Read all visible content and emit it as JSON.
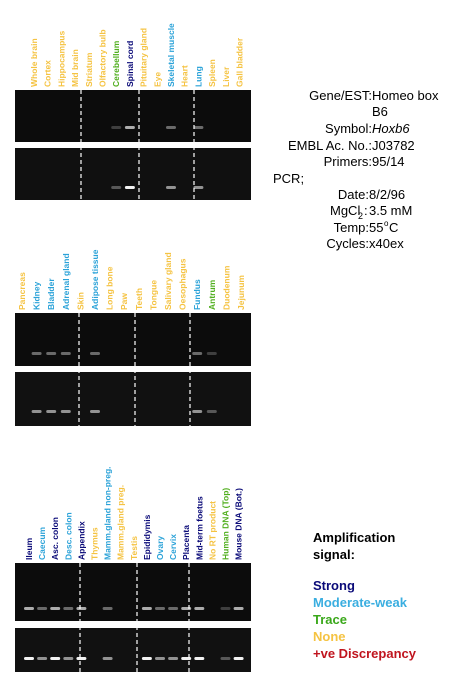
{
  "panels": [
    {
      "lanes": [
        {
          "label": "Whole brain",
          "color": "#f5c342"
        },
        {
          "label": "Cortex",
          "color": "#f5c342"
        },
        {
          "label": "Hippocampus",
          "color": "#f5c342"
        },
        {
          "label": "Mid brain",
          "color": "#f5c342"
        },
        {
          "label": "Striatum",
          "color": "#f5c342"
        },
        {
          "label": "Olfactory bulb",
          "color": "#f5c342"
        },
        {
          "label": "Cerebellum",
          "color": "#4fae1c"
        },
        {
          "label": "Spinal cord",
          "color": "#0a0a78"
        },
        {
          "label": "Pituitary gland",
          "color": "#f5c342"
        },
        {
          "label": "Eye",
          "color": "#f5c342"
        },
        {
          "label": "Skeletal muscle",
          "color": "#2aa2d8"
        },
        {
          "label": "Heart",
          "color": "#f5c342"
        },
        {
          "label": "Lung",
          "color": "#2aa2d8"
        },
        {
          "label": "Spleen",
          "color": "#f5c342"
        },
        {
          "label": "Liver",
          "color": "#f5c342"
        },
        {
          "label": "Gall bladder",
          "color": "#f5c342"
        }
      ]
    },
    {
      "lanes": [
        {
          "label": "Pancreas",
          "color": "#f5c342"
        },
        {
          "label": "Kidney",
          "color": "#2aa2d8"
        },
        {
          "label": "Bladder",
          "color": "#2aa2d8"
        },
        {
          "label": "Adrenal gland",
          "color": "#2aa2d8"
        },
        {
          "label": "Skin",
          "color": "#f5c342"
        },
        {
          "label": "Adipose tissue",
          "color": "#2aa2d8"
        },
        {
          "label": "Long bone",
          "color": "#f5c342"
        },
        {
          "label": "Paw",
          "color": "#f5c342"
        },
        {
          "label": "Teeth",
          "color": "#f5c342"
        },
        {
          "label": "Tongue",
          "color": "#f5c342"
        },
        {
          "label": "Salivary gland",
          "color": "#f5c342"
        },
        {
          "label": "Oesophagus",
          "color": "#f5c342"
        },
        {
          "label": "Fundus",
          "color": "#2aa2d8"
        },
        {
          "label": "Antrum",
          "color": "#4fae1c"
        },
        {
          "label": "Duodenum",
          "color": "#f5c342"
        },
        {
          "label": "Jejunum",
          "color": "#f5c342"
        }
      ]
    },
    {
      "lanes": [
        {
          "label": "Ileum",
          "color": "#0a0a78"
        },
        {
          "label": "Caecum",
          "color": "#2aa2d8"
        },
        {
          "label": "Asc. colon",
          "color": "#0a0a78"
        },
        {
          "label": "Desc. colon",
          "color": "#2aa2d8"
        },
        {
          "label": "Appendix",
          "color": "#0a0a78"
        },
        {
          "label": "Thymus",
          "color": "#f5c342"
        },
        {
          "label": "Mamm.gland non-preg.",
          "color": "#2aa2d8"
        },
        {
          "label": "Mamm.gland preg.",
          "color": "#f5c342"
        },
        {
          "label": "Testis",
          "color": "#f5c342"
        },
        {
          "label": "Epididymis",
          "color": "#0a0a78"
        },
        {
          "label": "Ovary",
          "color": "#2aa2d8"
        },
        {
          "label": "Cervix",
          "color": "#2aa2d8"
        },
        {
          "label": "Placenta",
          "color": "#0a0a78"
        },
        {
          "label": "Mid-term foetus",
          "color": "#0a0a78"
        },
        {
          "label": "No RT product",
          "color": "#f5c342"
        },
        {
          "label": "Human DNA (Top)",
          "color": "#4fae1c"
        },
        {
          "label": "Mouse DNA (Bot.)",
          "color": "#0a0a78"
        }
      ]
    }
  ],
  "info": {
    "gene_label": "Gene/EST:",
    "gene_line1": "Homeo box",
    "gene_line2": "B6",
    "symbol_label": "Symbol:",
    "symbol": "Hoxb6",
    "embl_label": "EMBL Ac. No.:",
    "embl": "J03782",
    "primers_label": "Primers:",
    "primers": "95/14",
    "pcr": "PCR;",
    "date_label": "Date:",
    "date": "8/2/96",
    "mgcl_label": "MgCl",
    "mgcl_sub": "2",
    "mgcl_colon": ":",
    "mgcl": "3.5 mM",
    "temp_label": "Temp:",
    "temp": "55",
    "temp_sup": "o",
    "temp_unit": "C",
    "cycles_label": "Cycles:",
    "cycles": "x40ex"
  },
  "legend": {
    "title_line1": "Amplification",
    "title_line2": "signal:",
    "items": [
      {
        "label": "Strong",
        "color": "#0a0a78"
      },
      {
        "label": "Moderate-weak",
        "color": "#3aaee0"
      },
      {
        "label": "Trace",
        "color": "#3aa81a"
      },
      {
        "label": "None",
        "color": "#f5c342"
      },
      {
        "label": "+ve Discrepancy",
        "color": "#c0141e"
      }
    ]
  }
}
